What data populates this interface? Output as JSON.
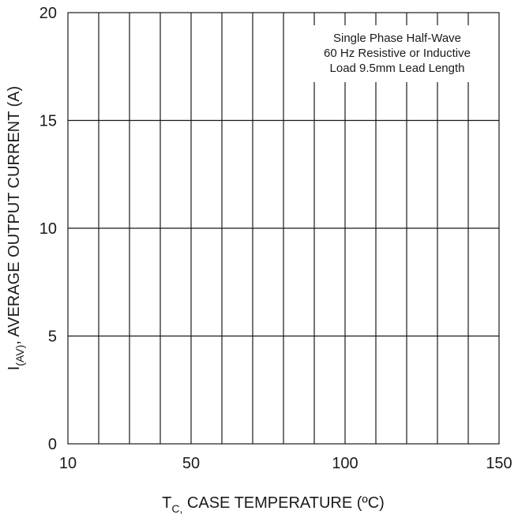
{
  "chart_data": {
    "type": "line",
    "title": "",
    "xlabel": {
      "main": "T",
      "sub": "C,",
      "rest": " CASE TEMPERATURE (ºC)"
    },
    "ylabel": {
      "main": "I",
      "sub": "(AV)",
      "rest": ", AVERAGE OUTPUT CURRENT (A)"
    },
    "xlim": [
      10,
      150
    ],
    "ylim": [
      0,
      20
    ],
    "x_ticks": [
      10,
      50,
      100,
      150
    ],
    "y_ticks": [
      0,
      5,
      10,
      15,
      20
    ],
    "x_grid": [
      10,
      20,
      30,
      40,
      50,
      60,
      70,
      80,
      90,
      100,
      110,
      120,
      130,
      140,
      150
    ],
    "y_grid": [
      0,
      5,
      10,
      15,
      20
    ],
    "grid": true,
    "series": [],
    "annotation": {
      "lines": [
        "Single Phase Half-Wave",
        "60 Hz Resistive or Inductive",
        "Load 9.5mm Lead Length"
      ],
      "placement": "top-right"
    }
  }
}
